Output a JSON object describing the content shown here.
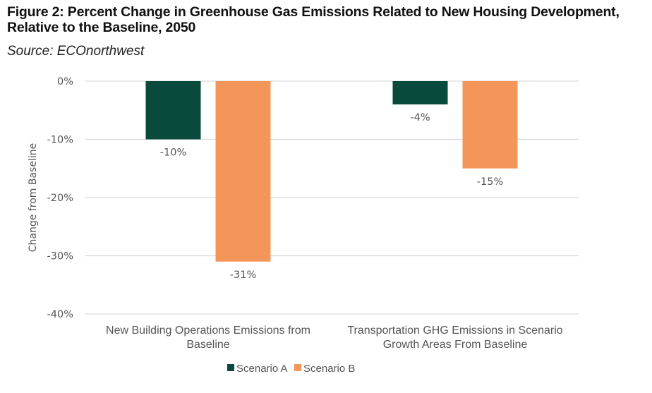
{
  "figure": {
    "title": "Figure 2: Percent Change in Greenhouse Gas Emissions Related to New Housing Development, Relative to the Baseline, 2050",
    "source": "Source: ECOnorthwest"
  },
  "chart_data": {
    "type": "bar",
    "title": "Figure 2: Percent Change in Greenhouse Gas Emissions Related to New Housing Development, Relative to the Baseline, 2050",
    "subtitle": "Source: ECOnorthwest",
    "xlabel": "",
    "ylabel": "Change from Baseline",
    "ylim": [
      -40,
      0
    ],
    "yticks": [
      0,
      -10,
      -20,
      -30,
      -40
    ],
    "ytick_labels": [
      "0%",
      "-10%",
      "-20%",
      "-30%",
      "-40%"
    ],
    "grid": true,
    "legend_position": "bottom",
    "categories": [
      [
        "New Building Operations Emissions from",
        "Baseline"
      ],
      [
        "Transportation GHG Emissions in Scenario",
        "Growth Areas From Baseline"
      ]
    ],
    "series": [
      {
        "name": "Scenario A",
        "color": "#0a4a3c",
        "values": [
          -10,
          -4
        ],
        "labels": [
          "-10%",
          "-4%"
        ]
      },
      {
        "name": "Scenario B",
        "color": "#f4965a",
        "values": [
          -31,
          -15
        ],
        "labels": [
          "-31%",
          "-15%"
        ]
      }
    ]
  }
}
